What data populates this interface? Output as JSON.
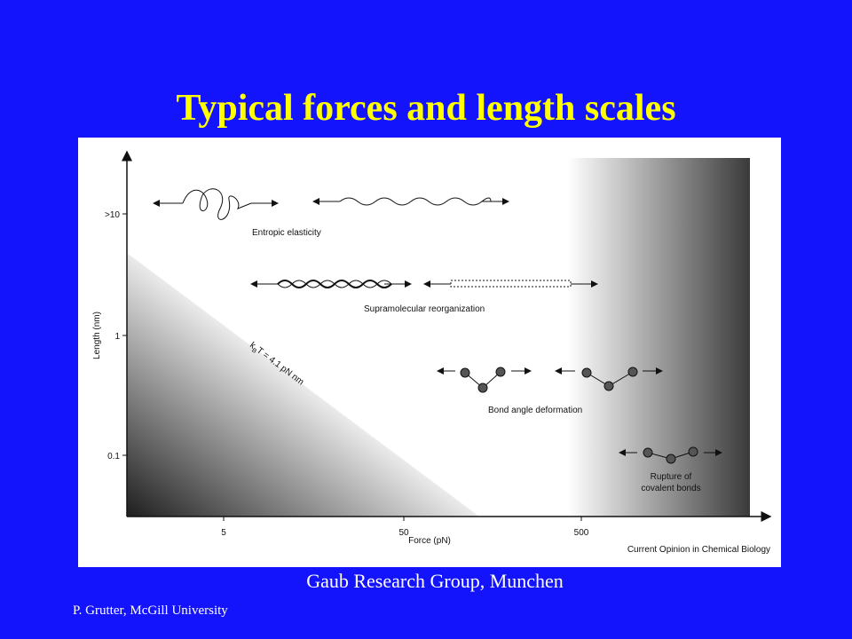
{
  "title": "Typical forces and length scales",
  "figure": {
    "y_axis_label": "Length (nm)",
    "y_ticks": [
      ">10",
      "1",
      "0.1"
    ],
    "x_axis_label": "Force (pN)",
    "x_ticks": [
      "5",
      "50",
      "500"
    ],
    "regimes": [
      "Entropic elasticity",
      "Supramolecular reorganization",
      "Bond angle deformation"
    ],
    "rupture_label": [
      "Rupture of",
      "covalent bonds"
    ],
    "kbt_label": {
      "k": "k",
      "sub": "B",
      "rest": "T = 4.1 pN nm"
    },
    "source": "Current Opinion in Chemical Biology"
  },
  "caption": "Gaub Research Group, Munchen",
  "footer": "P. Grutter,  McGill University"
}
